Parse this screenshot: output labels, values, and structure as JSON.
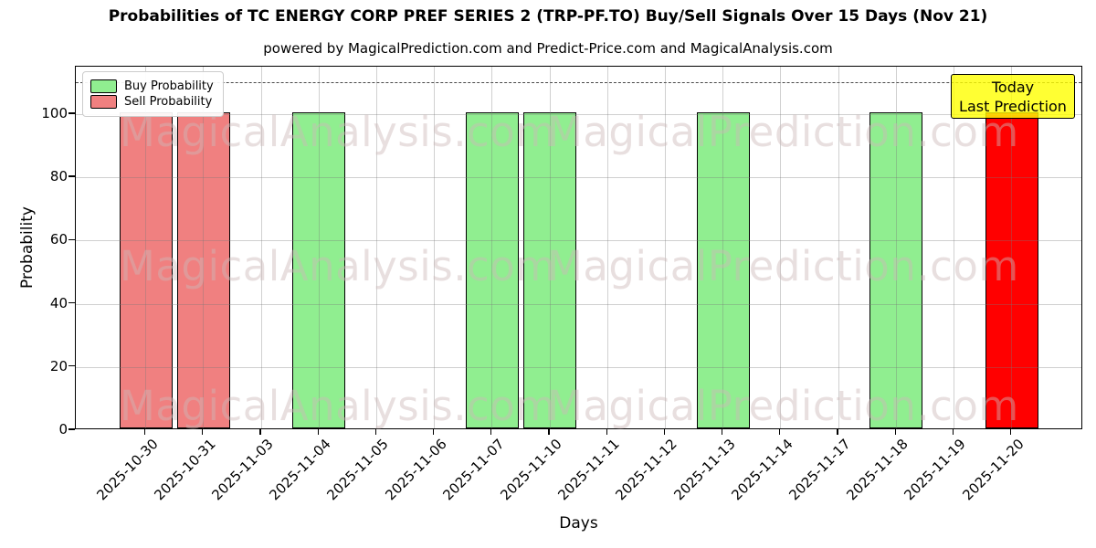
{
  "title": "Probabilities of TC ENERGY CORP PREF SERIES 2 (TRP-PF.TO) Buy/Sell Signals Over 15 Days (Nov 21)",
  "subtitle": "powered by MagicalPrediction.com and Predict-Price.com and MagicalAnalysis.com",
  "axes": {
    "ylabel": "Probability",
    "xlabel": "Days",
    "yticks": [
      "0",
      "20",
      "40",
      "60",
      "80",
      "100"
    ],
    "ytick_values": [
      0,
      20,
      40,
      60,
      80,
      100
    ],
    "ylim": [
      0,
      115
    ],
    "dashed_line_y": 110,
    "grid": "on"
  },
  "legend": {
    "position": "upper-left",
    "items": [
      {
        "label": "Buy Probability",
        "color": "#90ee90"
      },
      {
        "label": "Sell Probability",
        "color": "#f08080"
      }
    ]
  },
  "annotation": {
    "line1": "Today",
    "line2": "Last Prediction",
    "bg_color": "#ffff00"
  },
  "watermarks": {
    "left": "MagicalAnalysis.com",
    "right": "MagicalPrediction.com"
  },
  "colors": {
    "buy": "#90ee90",
    "sell": "#f08080",
    "today": "#ff0000",
    "bar_edge": "#000000",
    "grid": "#b0b0b0",
    "watermark": "#cbb8b8"
  },
  "chart_data": {
    "type": "bar",
    "title": "Probabilities of TC ENERGY CORP PREF SERIES 2 (TRP-PF.TO) Buy/Sell Signals Over 15 Days (Nov 21)",
    "xlabel": "Days",
    "ylabel": "Probability",
    "ylim": [
      0,
      115
    ],
    "grid": true,
    "legend_position": "upper-left",
    "categories": [
      "2025-10-30",
      "2025-10-31",
      "2025-11-03",
      "2025-11-04",
      "2025-11-05",
      "2025-11-06",
      "2025-11-07",
      "2025-11-10",
      "2025-11-11",
      "2025-11-12",
      "2025-11-13",
      "2025-11-14",
      "2025-11-17",
      "2025-11-18",
      "2025-11-19",
      "2025-11-20"
    ],
    "series": [
      {
        "name": "Buy Probability",
        "color": "#90ee90",
        "values": [
          0,
          0,
          0,
          100,
          0,
          0,
          100,
          100,
          0,
          0,
          100,
          0,
          0,
          100,
          0,
          0
        ]
      },
      {
        "name": "Sell Probability",
        "color": "#f08080",
        "values": [
          100,
          100,
          0,
          0,
          0,
          0,
          0,
          0,
          0,
          0,
          0,
          0,
          0,
          0,
          0,
          0
        ]
      },
      {
        "name": "Today Last Prediction",
        "color": "#ff0000",
        "values": [
          0,
          0,
          0,
          0,
          0,
          0,
          0,
          0,
          0,
          0,
          0,
          0,
          0,
          0,
          0,
          100
        ]
      }
    ],
    "dashed_reference_line": 110
  }
}
